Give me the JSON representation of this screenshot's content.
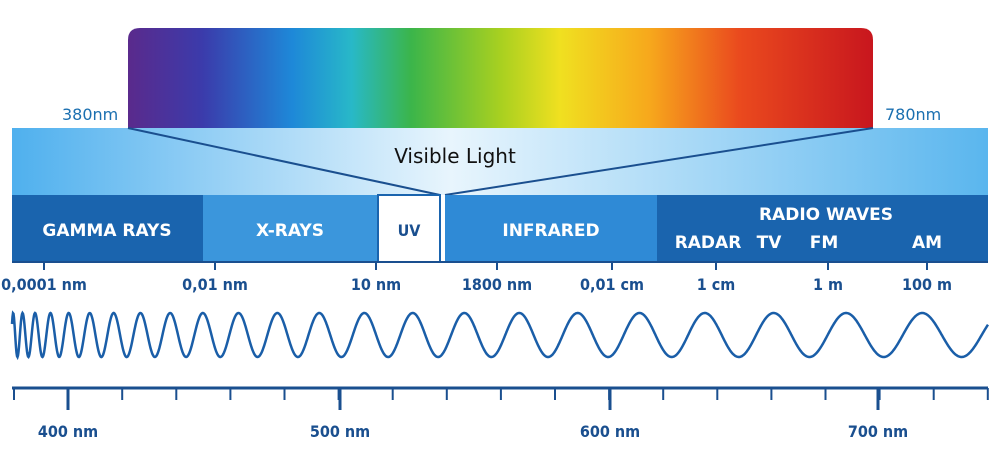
{
  "spectrum": {
    "start_label": "380nm",
    "end_label": "780nm",
    "title": "Visible Light"
  },
  "bands": [
    "GAMMA RAYS",
    "X-RAYS",
    "UV",
    "INFRARED",
    "RADIO WAVES"
  ],
  "radio_sub": [
    "RADAR",
    "TV",
    "FM",
    "AM"
  ],
  "scale_labels": [
    "0,0001 nm",
    "0,01 nm",
    "10 nm",
    "1800 nm",
    "0,01 cm",
    "1 cm",
    "1 m",
    "100 m"
  ],
  "wavelength_axis": [
    "400 nm",
    "500 nm",
    "600 nm",
    "700 nm"
  ]
}
